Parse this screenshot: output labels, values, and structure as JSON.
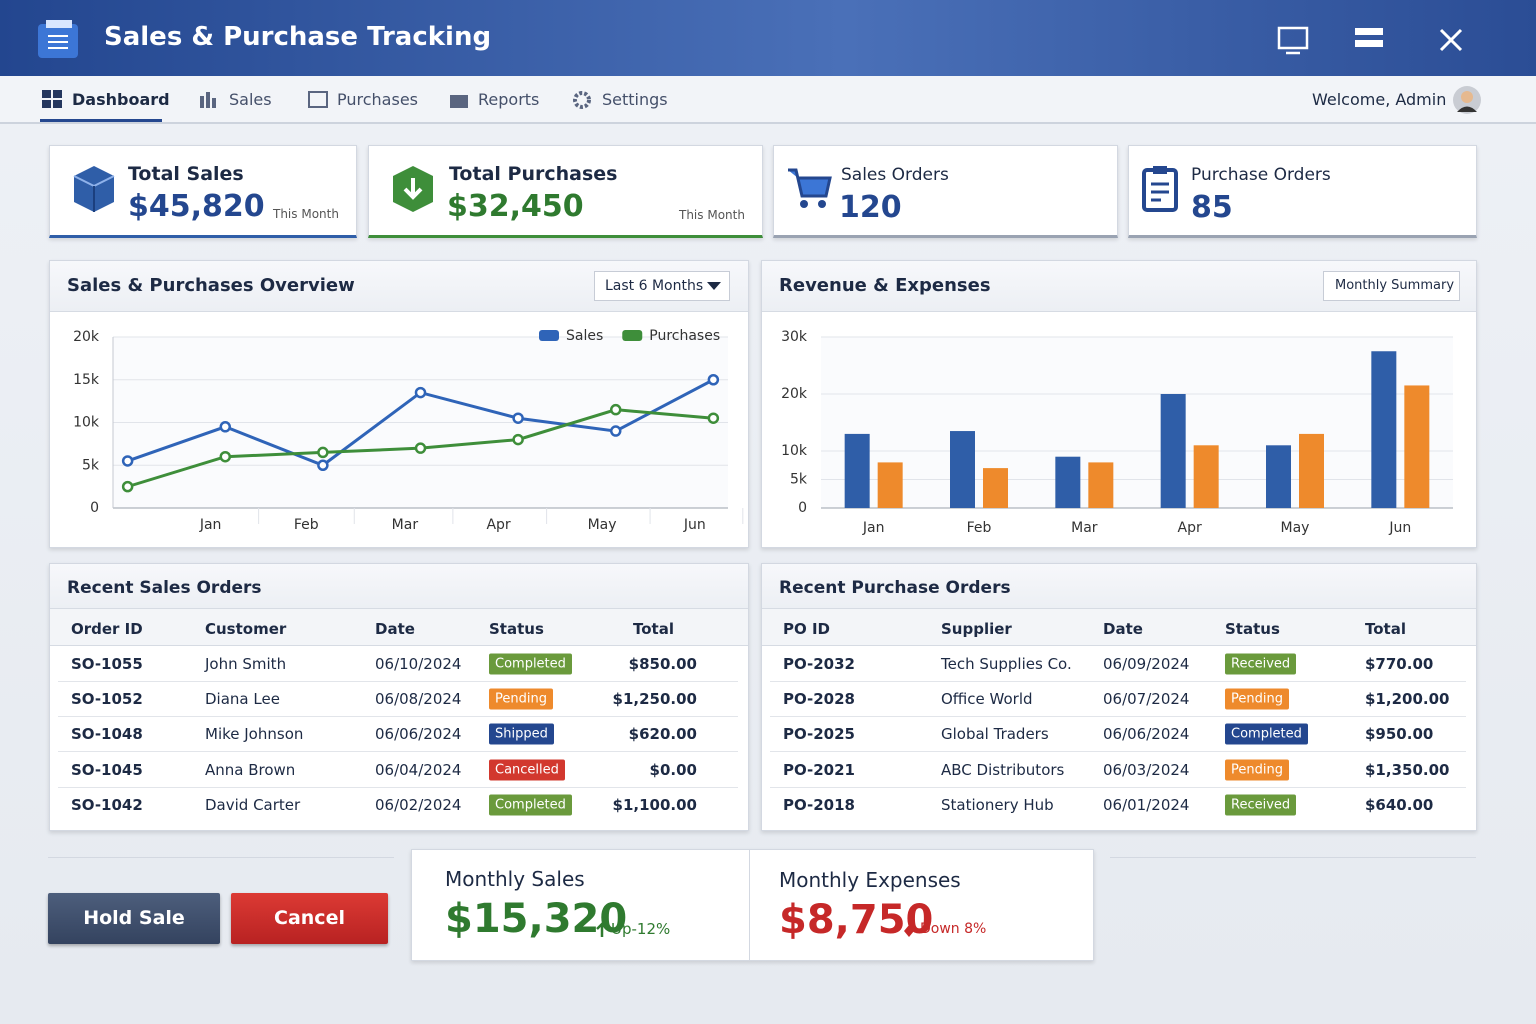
{
  "header": {
    "title": "Sales & Purchase Tracking"
  },
  "nav": {
    "items": [
      "Dashboard",
      "Sales",
      "Purchases",
      "Reports",
      "Settings"
    ],
    "welcome": "Welcome, Admin"
  },
  "cards": [
    {
      "label": "Total Sales",
      "value": "$45,820",
      "note": "This Month"
    },
    {
      "label": "Total Purchases",
      "value": "$32,450",
      "note": "This Month"
    },
    {
      "label": "Sales Orders",
      "value": "120"
    },
    {
      "label": "Purchase Orders",
      "value": "85"
    }
  ],
  "chart_data": [
    {
      "type": "line",
      "title": "Sales & Purchases Overview",
      "dropdown": "Last 6 Months",
      "x": [
        0,
        1,
        2,
        3,
        4,
        5,
        6
      ],
      "xlim": [
        -0.15,
        6.15
      ],
      "xticks": [
        {
          "value": 0.85,
          "label": "Jan"
        },
        {
          "value": 1.83,
          "label": "Feb"
        },
        {
          "value": 2.84,
          "label": "Mar"
        },
        {
          "value": 3.8,
          "label": "Apr"
        },
        {
          "value": 4.86,
          "label": "May"
        },
        {
          "value": 5.81,
          "label": "Jun"
        }
      ],
      "ylim": [
        0,
        20000
      ],
      "yticks": [
        {
          "value": 0,
          "label": "0"
        },
        {
          "value": 5000,
          "label": "5k"
        },
        {
          "value": 10000,
          "label": "10k"
        },
        {
          "value": 15000,
          "label": "15k"
        },
        {
          "value": 20000,
          "label": "20k"
        }
      ],
      "grid": true,
      "legend": "top-right",
      "series": [
        {
          "name": "Sales",
          "color": "#2f64b8",
          "values": [
            5500,
            9500,
            5000,
            13500,
            10500,
            9000,
            15000
          ]
        },
        {
          "name": "Purchases",
          "color": "#3e8e3a",
          "values": [
            2500,
            6000,
            6500,
            7000,
            8000,
            11500,
            10500
          ]
        }
      ]
    },
    {
      "type": "bar",
      "title": "Revenue & Expenses",
      "button": "Monthly Summary",
      "categories": [
        "Jan",
        "Feb",
        "Mar",
        "Apr",
        "May",
        "Jun"
      ],
      "ylim": [
        0,
        30000
      ],
      "yticks": [
        {
          "value": 0,
          "label": "0"
        },
        {
          "value": 5000,
          "label": "5k"
        },
        {
          "value": 10000,
          "label": "10k"
        },
        {
          "value": 20000,
          "label": "20k"
        },
        {
          "value": 30000,
          "label": "30k"
        }
      ],
      "grid": true,
      "series": [
        {
          "color": "#2f5ea8",
          "values": [
            13000,
            13500,
            9000,
            20000,
            11000,
            27500
          ]
        },
        {
          "color": "#ee8a2c",
          "values": [
            8000,
            7000,
            8000,
            11000,
            13000,
            21500
          ]
        }
      ]
    }
  ],
  "sales_table": {
    "title": "Recent Sales Orders",
    "headers": [
      "Order ID",
      "Customer",
      "Date",
      "Status",
      "Total"
    ],
    "rows": [
      [
        "SO-1055",
        "John Smith",
        "06/10/2024",
        "Completed",
        "$850.00"
      ],
      [
        "SO-1052",
        "Diana Lee",
        "06/08/2024",
        "Pending",
        "$1,250.00"
      ],
      [
        "SO-1048",
        "Mike Johnson",
        "06/06/2024",
        "Shipped",
        "$620.00"
      ],
      [
        "SO-1045",
        "Anna Brown",
        "06/04/2024",
        "Cancelled",
        "$0.00"
      ],
      [
        "SO-1042",
        "David Carter",
        "06/02/2024",
        "Completed",
        "$1,100.00"
      ]
    ],
    "status_colors": [
      "#6a9a3c",
      "#ee8a2c",
      "#24478f",
      "#d2382e",
      "#6a9a3c"
    ]
  },
  "purchase_table": {
    "title": "Recent Purchase Orders",
    "headers": [
      "PO ID",
      "Supplier",
      "Date",
      "Status",
      "Total"
    ],
    "rows": [
      [
        "PO-2032",
        "Tech Supplies Co.",
        "06/09/2024",
        "Received",
        "$770.00"
      ],
      [
        "PO-2028",
        "Office World",
        "06/07/2024",
        "Pending",
        "$1,200.00"
      ],
      [
        "PO-2025",
        "Global Traders",
        "06/06/2024",
        "Completed",
        "$950.00"
      ],
      [
        "PO-2021",
        "ABC Distributors",
        "06/03/2024",
        "Pending",
        "$1,350.00"
      ],
      [
        "PO-2018",
        "Stationery Hub",
        "06/01/2024",
        "Received",
        "$640.00"
      ]
    ],
    "status_colors": [
      "#6a9a3c",
      "#ee8a2c",
      "#24478f",
      "#ee8a2c",
      "#6a9a3c"
    ]
  },
  "buttons": [
    "Hold Sale",
    "Cancel"
  ],
  "monthly": [
    {
      "label": "Monthly Sales",
      "value": "$15,320",
      "change": "Up-12%"
    },
    {
      "label": "Monthly Expenses",
      "value": "$8,750",
      "change": "Down 8%"
    }
  ]
}
